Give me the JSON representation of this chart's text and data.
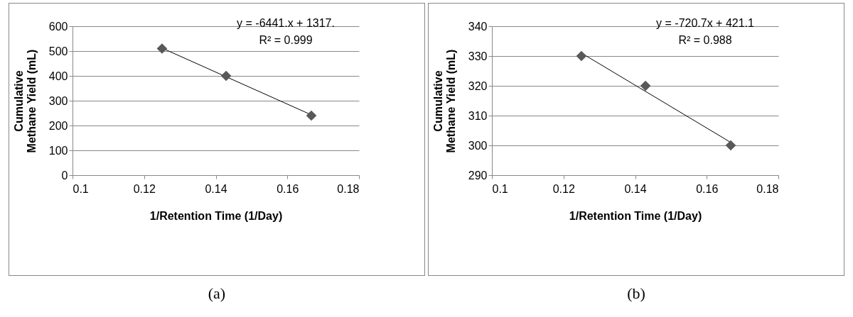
{
  "chart_data": [
    {
      "type": "scatter",
      "xlabel": "1/Retention Time (1/Day)",
      "ylabel": "Cumulative Methane Yield (mL)",
      "xlim": [
        0.1,
        0.18
      ],
      "xticks": [
        0.1,
        0.12,
        0.14,
        0.16,
        0.18
      ],
      "ylim": [
        0,
        600
      ],
      "yticks": [
        0,
        100,
        200,
        300,
        400,
        500,
        600
      ],
      "grid": "y",
      "series": [
        {
          "type": "line",
          "marker": "none",
          "color": "#000000",
          "x": [
            0.125,
            0.1667
          ],
          "values": [
            512,
            243
          ]
        },
        {
          "marker": "diamond",
          "color": "#595959",
          "x": [
            0.125,
            0.1429,
            0.1667
          ],
          "values": [
            510,
            400,
            240
          ]
        }
      ],
      "annotations": [
        "y = -6441.x + 1317.",
        "R² = 0.999",
        "(a)"
      ]
    },
    {
      "type": "scatter",
      "xlabel": "1/Retention Time (1/Day)",
      "ylabel": "Cumulative Methane Yield (mL)",
      "xlim": [
        0.1,
        0.18
      ],
      "xticks": [
        0.1,
        0.12,
        0.14,
        0.16,
        0.18
      ],
      "ylim": [
        290,
        340
      ],
      "yticks": [
        290,
        300,
        310,
        320,
        330,
        340
      ],
      "grid": "y",
      "series": [
        {
          "type": "line",
          "marker": "none",
          "color": "#000000",
          "x": [
            0.125,
            0.1667
          ],
          "values": [
            331,
            301
          ]
        },
        {
          "marker": "diamond",
          "color": "#595959",
          "x": [
            0.125,
            0.1429,
            0.1667
          ],
          "values": [
            330,
            320,
            300
          ]
        }
      ],
      "annotations": [
        "y = -720.7x + 421.1",
        "R² = 0.988",
        "(b)"
      ]
    }
  ]
}
